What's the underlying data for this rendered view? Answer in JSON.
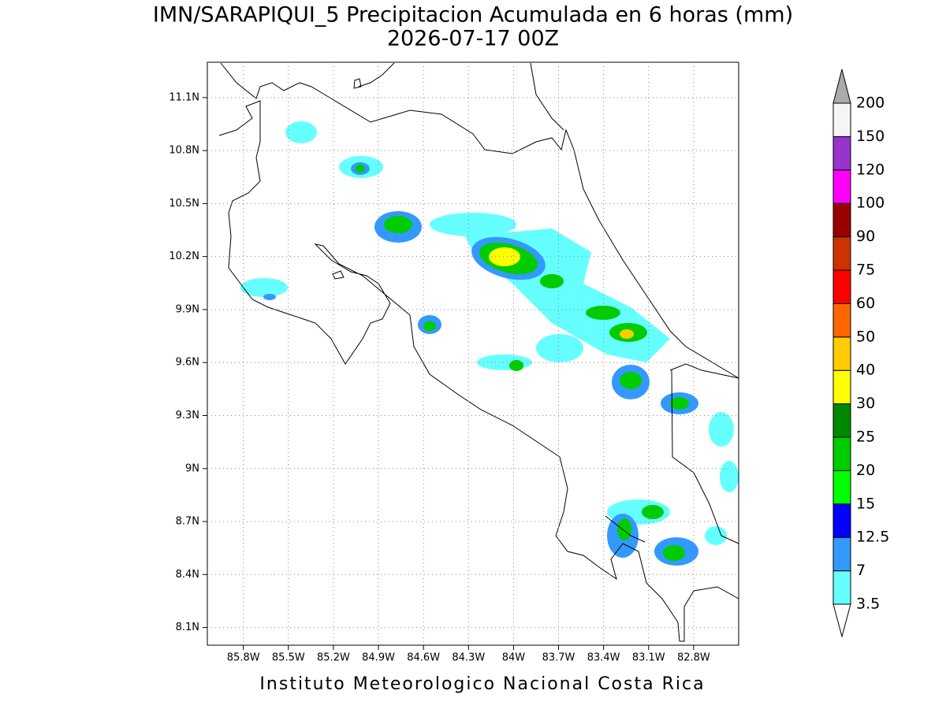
{
  "map": {
    "title": "IMN/SARAPIQUI_5 Precipitacion Acumulada en 6 horas (mm)",
    "subtitle": "2026-07-17 00Z",
    "xlim": [
      -86.04,
      -82.5
    ],
    "ylim": [
      8.0,
      11.3
    ],
    "xticks": [
      {
        "value": -85.8,
        "label": "85.8W"
      },
      {
        "value": -85.5,
        "label": "85.5W"
      },
      {
        "value": -85.2,
        "label": "85.2W"
      },
      {
        "value": -84.9,
        "label": "84.9W"
      },
      {
        "value": -84.6,
        "label": "84.6W"
      },
      {
        "value": -84.3,
        "label": "84.3W"
      },
      {
        "value": -84.0,
        "label": "84W"
      },
      {
        "value": -83.7,
        "label": "83.7W"
      },
      {
        "value": -83.4,
        "label": "83.4W"
      },
      {
        "value": -83.1,
        "label": "83.1W"
      },
      {
        "value": -82.8,
        "label": "82.8W"
      }
    ],
    "yticks": [
      {
        "value": 8.1,
        "label": "8.1N"
      },
      {
        "value": 8.4,
        "label": "8.4N"
      },
      {
        "value": 8.7,
        "label": "8.7N"
      },
      {
        "value": 9.0,
        "label": "9N"
      },
      {
        "value": 9.3,
        "label": "9.3N"
      },
      {
        "value": 9.6,
        "label": "9.6N"
      },
      {
        "value": 9.9,
        "label": "9.9N"
      },
      {
        "value": 10.2,
        "label": "10.2N"
      },
      {
        "value": 10.5,
        "label": "10.5N"
      },
      {
        "value": 10.8,
        "label": "10.8N"
      },
      {
        "value": 11.1,
        "label": "11.1N"
      }
    ],
    "grid": true,
    "colorbar": {
      "levels": [
        3.5,
        7,
        12.5,
        15,
        20,
        25,
        30,
        40,
        50,
        60,
        75,
        90,
        100,
        120,
        150,
        200
      ],
      "colors": [
        "#66ffff",
        "#3399ff",
        "#0000ff",
        "#00ff00",
        "#00cc00",
        "#008800",
        "#ffff00",
        "#ffcc00",
        "#ff6600",
        "#ff0000",
        "#cc3300",
        "#990000",
        "#ff00ff",
        "#9933cc",
        "#f5f5f5"
      ],
      "under_color": "#ffffff",
      "over_color": "#aaaaaa"
    },
    "footer": "Instituto Meteorologico Nacional Costa Rica"
  }
}
